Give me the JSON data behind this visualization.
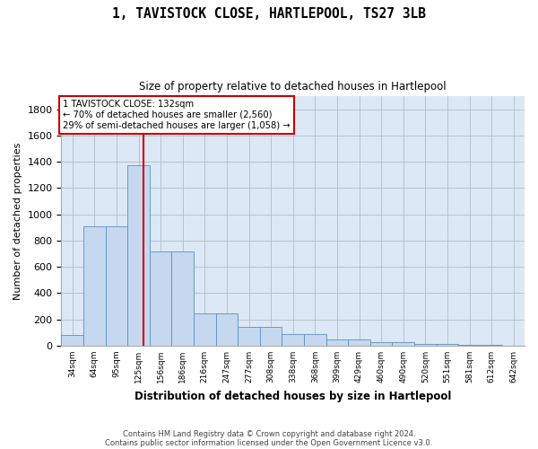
{
  "title": "1, TAVISTOCK CLOSE, HARTLEPOOL, TS27 3LB",
  "subtitle": "Size of property relative to detached houses in Hartlepool",
  "xlabel": "Distribution of detached houses by size in Hartlepool",
  "ylabel": "Number of detached properties",
  "categories": [
    "34sqm",
    "64sqm",
    "95sqm",
    "125sqm",
    "156sqm",
    "186sqm",
    "216sqm",
    "247sqm",
    "277sqm",
    "308sqm",
    "338sqm",
    "368sqm",
    "399sqm",
    "429sqm",
    "460sqm",
    "490sqm",
    "520sqm",
    "551sqm",
    "581sqm",
    "612sqm",
    "642sqm"
  ],
  "bar_heights": [
    80,
    910,
    910,
    1370,
    720,
    720,
    245,
    245,
    140,
    140,
    85,
    85,
    50,
    50,
    25,
    25,
    15,
    15,
    5,
    5,
    0
  ],
  "annotation_line1": "1 TAVISTOCK CLOSE: 132sqm",
  "annotation_line2": "← 70% of detached houses are smaller (2,560)",
  "annotation_line3": "29% of semi-detached houses are larger (1,058) →",
  "vline_position": 3.73,
  "bar_color": "#c5d8ef",
  "bar_edge_color": "#5b8fc4",
  "vline_color": "#cc0000",
  "grid_color": "#b0bec8",
  "ylim": [
    0,
    1900
  ],
  "yticks": [
    0,
    200,
    400,
    600,
    800,
    1000,
    1200,
    1400,
    1600,
    1800
  ],
  "footer_line1": "Contains HM Land Registry data © Crown copyright and database right 2024.",
  "footer_line2": "Contains public sector information licensed under the Open Government Licence v3.0."
}
